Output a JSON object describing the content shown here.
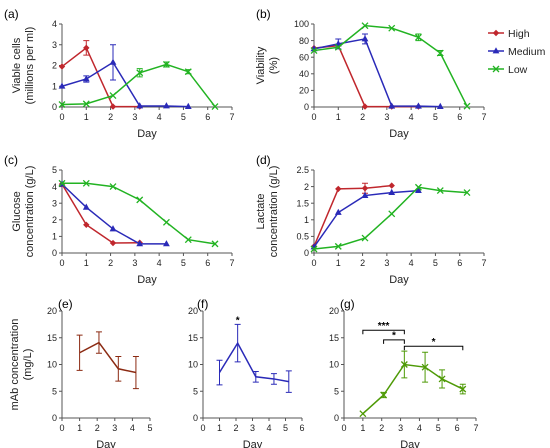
{
  "legend": [
    {
      "name": "High",
      "color": "#C0272D",
      "marker": "diamond"
    },
    {
      "name": "Medium",
      "color": "#2A2AB8",
      "marker": "triangle"
    },
    {
      "name": "Low",
      "color": "#22B322",
      "marker": "x"
    }
  ],
  "chart_data": [
    {
      "panel_label": "(a)",
      "type": "line",
      "xlabel": "Day",
      "ylabel": [
        "Viable cells",
        "(millions per ml)"
      ],
      "xlim": [
        0,
        7
      ],
      "xticks": [
        0,
        1,
        2,
        3,
        4,
        5,
        6,
        7
      ],
      "ylim": [
        0,
        4
      ],
      "yticks": [
        0,
        1,
        2,
        3,
        4
      ],
      "series": [
        {
          "name": "High",
          "color": "#C0272D",
          "marker": "diamond",
          "x": [
            0,
            1,
            2.1,
            3.2
          ],
          "y": [
            1.95,
            2.85,
            0.02,
            0.02
          ],
          "err": [
            0,
            0.35,
            0,
            0
          ]
        },
        {
          "name": "Medium",
          "color": "#2A2AB8",
          "marker": "triangle",
          "x": [
            0,
            1,
            2.1,
            3.2,
            4.3,
            5.2
          ],
          "y": [
            1.0,
            1.35,
            2.15,
            0.05,
            0.05,
            0.02
          ],
          "err": [
            0,
            0.15,
            0.85,
            0,
            0,
            0
          ]
        },
        {
          "name": "Low",
          "color": "#22B322",
          "marker": "x",
          "x": [
            0,
            1,
            2.1,
            3.2,
            4.3,
            5.2,
            6.3
          ],
          "y": [
            0.12,
            0.15,
            0.55,
            1.65,
            2.05,
            1.7,
            0.02
          ],
          "err": [
            0,
            0,
            0,
            0.2,
            0.12,
            0.1,
            0
          ]
        }
      ]
    },
    {
      "panel_label": "(b)",
      "type": "line",
      "xlabel": "Day",
      "ylabel": [
        "Viability",
        "(%)"
      ],
      "xlim": [
        0,
        7
      ],
      "xticks": [
        0,
        1,
        2,
        3,
        4,
        5,
        6,
        7
      ],
      "ylim": [
        0,
        100
      ],
      "yticks": [
        0,
        20,
        40,
        60,
        80,
        100
      ],
      "series": [
        {
          "name": "High",
          "color": "#C0272D",
          "marker": "diamond",
          "x": [
            0,
            1,
            2.1,
            3.2,
            4.3
          ],
          "y": [
            71,
            74,
            0.5,
            0.5,
            0.5
          ],
          "err": [
            0,
            0,
            0,
            0,
            0
          ]
        },
        {
          "name": "Medium",
          "color": "#2A2AB8",
          "marker": "triangle",
          "x": [
            0,
            1,
            2.1,
            3.2,
            4.3,
            5.2
          ],
          "y": [
            70,
            76,
            82,
            1,
            1,
            0.5
          ],
          "err": [
            0,
            6,
            6,
            0,
            0,
            0
          ]
        },
        {
          "name": "Low",
          "color": "#22B322",
          "marker": "x",
          "x": [
            0,
            1,
            2.1,
            3.2,
            4.3,
            5.2,
            6.3
          ],
          "y": [
            68,
            72,
            98,
            95,
            84,
            65,
            1
          ],
          "err": [
            0,
            0,
            0,
            0,
            4,
            3,
            0
          ]
        }
      ]
    },
    {
      "panel_label": "(c)",
      "type": "line",
      "xlabel": "Day",
      "ylabel": [
        "Glucose",
        "concentration (g/L)"
      ],
      "xlim": [
        0,
        7
      ],
      "xticks": [
        0,
        1,
        2,
        3,
        4,
        5,
        6,
        7
      ],
      "ylim": [
        0,
        5
      ],
      "yticks": [
        0,
        1,
        2,
        3,
        4,
        5
      ],
      "series": [
        {
          "name": "High",
          "color": "#C0272D",
          "marker": "diamond",
          "x": [
            0,
            1,
            2.1,
            3.2
          ],
          "y": [
            4.15,
            1.7,
            0.6,
            0.62
          ],
          "err": [
            0,
            0,
            0,
            0
          ]
        },
        {
          "name": "Medium",
          "color": "#2A2AB8",
          "marker": "triangle",
          "x": [
            0,
            1,
            2.1,
            3.2,
            4.3
          ],
          "y": [
            4.15,
            2.75,
            1.45,
            0.55,
            0.55
          ],
          "err": [
            0,
            0,
            0,
            0,
            0
          ]
        },
        {
          "name": "Low",
          "color": "#22B322",
          "marker": "x",
          "x": [
            0,
            1,
            2.1,
            3.2,
            4.3,
            5.2,
            6.3
          ],
          "y": [
            4.2,
            4.2,
            4.0,
            3.2,
            1.85,
            0.8,
            0.55
          ],
          "err": [
            0,
            0,
            0,
            0,
            0,
            0,
            0
          ]
        }
      ]
    },
    {
      "panel_label": "(d)",
      "type": "line",
      "xlabel": "Day",
      "ylabel": [
        "Lactate",
        "concentration (g/L)"
      ],
      "xlim": [
        0,
        7
      ],
      "xticks": [
        0,
        1,
        2,
        3,
        4,
        5,
        6,
        7
      ],
      "ylim": [
        0,
        2.5
      ],
      "yticks": [
        0,
        0.5,
        1,
        1.5,
        2,
        2.5
      ],
      "series": [
        {
          "name": "High",
          "color": "#C0272D",
          "marker": "diamond",
          "x": [
            0,
            1,
            2.1,
            3.2
          ],
          "y": [
            0.2,
            1.93,
            1.95,
            2.03
          ],
          "err": [
            0,
            0,
            0.15,
            0
          ]
        },
        {
          "name": "Medium",
          "color": "#2A2AB8",
          "marker": "triangle",
          "x": [
            0,
            1,
            2.1,
            3.2,
            4.3
          ],
          "y": [
            0.18,
            1.22,
            1.73,
            1.82,
            1.88
          ],
          "err": [
            0,
            0,
            0,
            0,
            0
          ]
        },
        {
          "name": "Low",
          "color": "#22B322",
          "marker": "x",
          "x": [
            0,
            1,
            2.1,
            3.2,
            4.3,
            5.2,
            6.3
          ],
          "y": [
            0.12,
            0.2,
            0.45,
            1.18,
            1.98,
            1.88,
            1.82
          ],
          "err": [
            0,
            0,
            0,
            0,
            0,
            0,
            0
          ]
        }
      ]
    },
    {
      "panel_label": "(e)",
      "type": "line",
      "xlabel": "Day",
      "ylabel": [
        "mAb concentration",
        "(mg/L)"
      ],
      "xlim": [
        0,
        5
      ],
      "xticks": [
        0,
        1,
        2,
        3,
        4,
        5
      ],
      "ylim": [
        0,
        20
      ],
      "yticks": [
        0,
        5,
        10,
        15,
        20
      ],
      "series": [
        {
          "name": "High",
          "color": "#8B2A12",
          "marker": "none",
          "x": [
            1,
            2.1,
            3.2,
            4.2
          ],
          "y": [
            12.2,
            14.1,
            9.2,
            8.5
          ],
          "err": [
            3.3,
            2.0,
            2.3,
            3.0
          ]
        }
      ]
    },
    {
      "panel_label": "(f)",
      "type": "line",
      "xlabel": "Day",
      "ylabel": [],
      "xlim": [
        0,
        6
      ],
      "xticks": [
        0,
        1,
        2,
        3,
        4,
        5,
        6
      ],
      "ylim": [
        0,
        20
      ],
      "yticks": [
        0,
        5,
        10,
        15,
        20
      ],
      "series": [
        {
          "name": "Medium",
          "color": "#2A2AB8",
          "marker": "none",
          "x": [
            1,
            2.1,
            3.2,
            4.3,
            5.2
          ],
          "y": [
            8.5,
            14.0,
            7.7,
            7.3,
            6.8
          ],
          "err": [
            2.3,
            3.5,
            1.0,
            1.0,
            2.0
          ]
        }
      ],
      "annotations": [
        {
          "text": "*",
          "x": 2.1,
          "y": 18.4
        }
      ]
    },
    {
      "panel_label": "(g)",
      "type": "line",
      "xlabel": "Day",
      "ylabel": [],
      "xlim": [
        0,
        7
      ],
      "xticks": [
        0,
        1,
        2,
        3,
        4,
        5,
        6,
        7
      ],
      "ylim": [
        0,
        20
      ],
      "yticks": [
        0,
        5,
        10,
        15,
        20
      ],
      "series": [
        {
          "name": "Low",
          "color": "#4E9A06",
          "marker": "x",
          "x": [
            1,
            2.1,
            3.2,
            4.3,
            5.2,
            6.3
          ],
          "y": [
            0.8,
            4.3,
            10.0,
            9.5,
            7.3,
            5.4
          ],
          "err": [
            0,
            0.5,
            2.5,
            2.8,
            1.7,
            0.9
          ]
        }
      ],
      "brackets": [
        {
          "text": "***",
          "x1": 1,
          "x2": 3.2,
          "y": 16.4
        },
        {
          "text": "*",
          "x1": 2.1,
          "x2": 3.2,
          "y": 14.6
        },
        {
          "text": "*",
          "x1": 3.2,
          "x2": 6.3,
          "y": 13.4
        }
      ]
    }
  ]
}
